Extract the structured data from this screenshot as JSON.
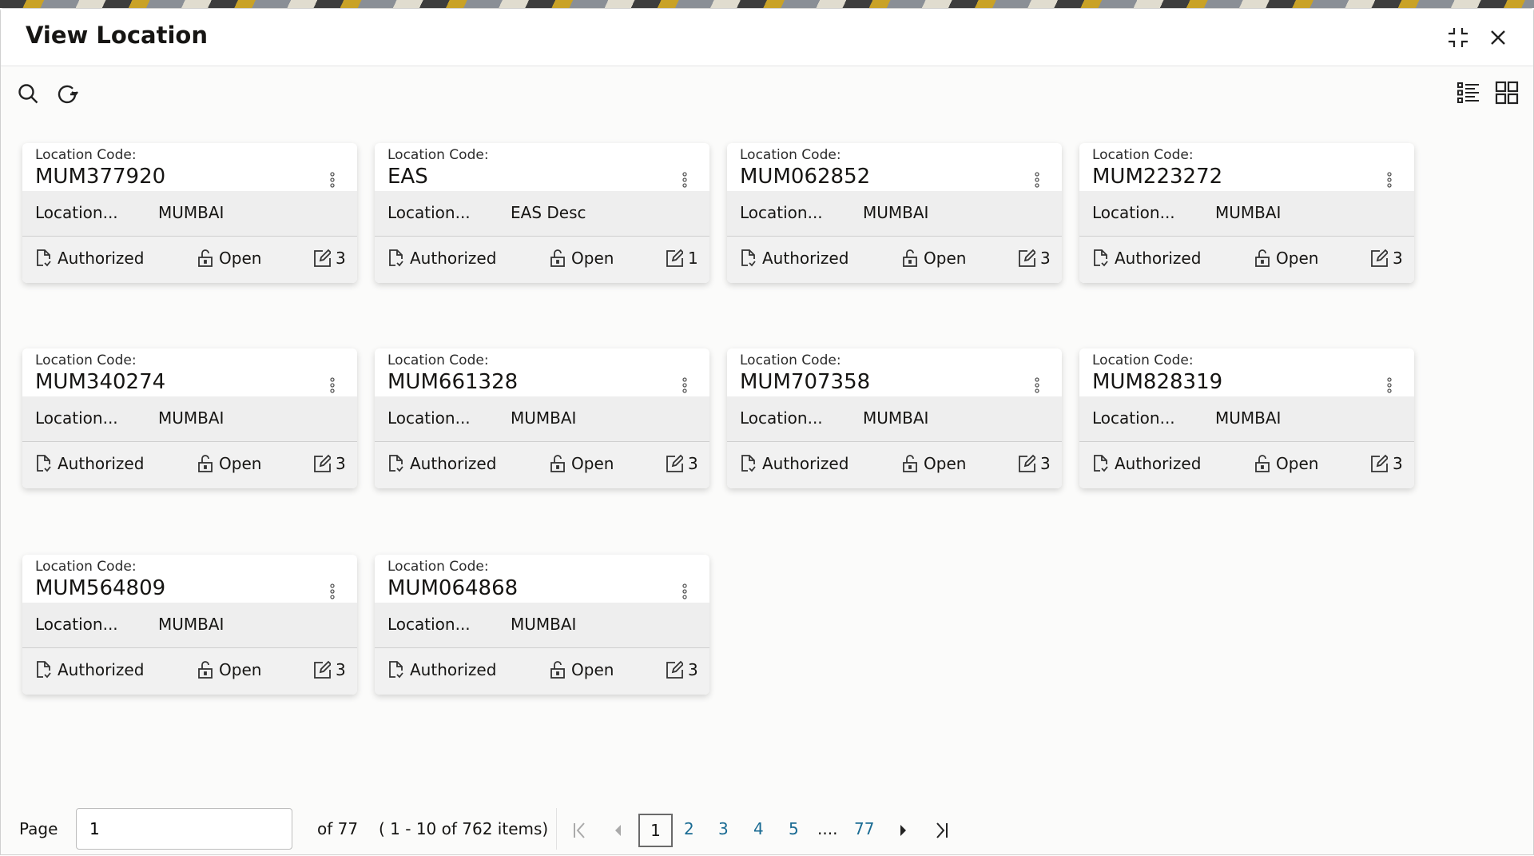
{
  "dialog": {
    "title": "View Location"
  },
  "cards": [
    {
      "code_label": "Location Code:",
      "code": "MUM377920",
      "desc_label": "Location...",
      "desc": "MUMBAI",
      "status": "Authorized",
      "lock": "Open",
      "edits": "3"
    },
    {
      "code_label": "Location Code:",
      "code": "EAS",
      "desc_label": "Location...",
      "desc": "EAS Desc",
      "status": "Authorized",
      "lock": "Open",
      "edits": "1"
    },
    {
      "code_label": "Location Code:",
      "code": "MUM062852",
      "desc_label": "Location...",
      "desc": "MUMBAI",
      "status": "Authorized",
      "lock": "Open",
      "edits": "3"
    },
    {
      "code_label": "Location Code:",
      "code": "MUM223272",
      "desc_label": "Location...",
      "desc": "MUMBAI",
      "status": "Authorized",
      "lock": "Open",
      "edits": "3"
    },
    {
      "code_label": "Location Code:",
      "code": "MUM340274",
      "desc_label": "Location...",
      "desc": "MUMBAI",
      "status": "Authorized",
      "lock": "Open",
      "edits": "3"
    },
    {
      "code_label": "Location Code:",
      "code": "MUM661328",
      "desc_label": "Location...",
      "desc": "MUMBAI",
      "status": "Authorized",
      "lock": "Open",
      "edits": "3"
    },
    {
      "code_label": "Location Code:",
      "code": "MUM707358",
      "desc_label": "Location...",
      "desc": "MUMBAI",
      "status": "Authorized",
      "lock": "Open",
      "edits": "3"
    },
    {
      "code_label": "Location Code:",
      "code": "MUM828319",
      "desc_label": "Location...",
      "desc": "MUMBAI",
      "status": "Authorized",
      "lock": "Open",
      "edits": "3"
    },
    {
      "code_label": "Location Code:",
      "code": "MUM564809",
      "desc_label": "Location...",
      "desc": "MUMBAI",
      "status": "Authorized",
      "lock": "Open",
      "edits": "3"
    },
    {
      "code_label": "Location Code:",
      "code": "MUM064868",
      "desc_label": "Location...",
      "desc": "MUMBAI",
      "status": "Authorized",
      "lock": "Open",
      "edits": "3"
    }
  ],
  "pager": {
    "page_label": "Page",
    "page_value": "1",
    "of_pages": "of 77",
    "items": "( 1 - 10 of 762 items)",
    "current": "1",
    "pages": [
      "2",
      "3",
      "4",
      "5"
    ],
    "ellipsis": "....",
    "last": "77"
  },
  "colors": {
    "link": "#1a6b93"
  }
}
